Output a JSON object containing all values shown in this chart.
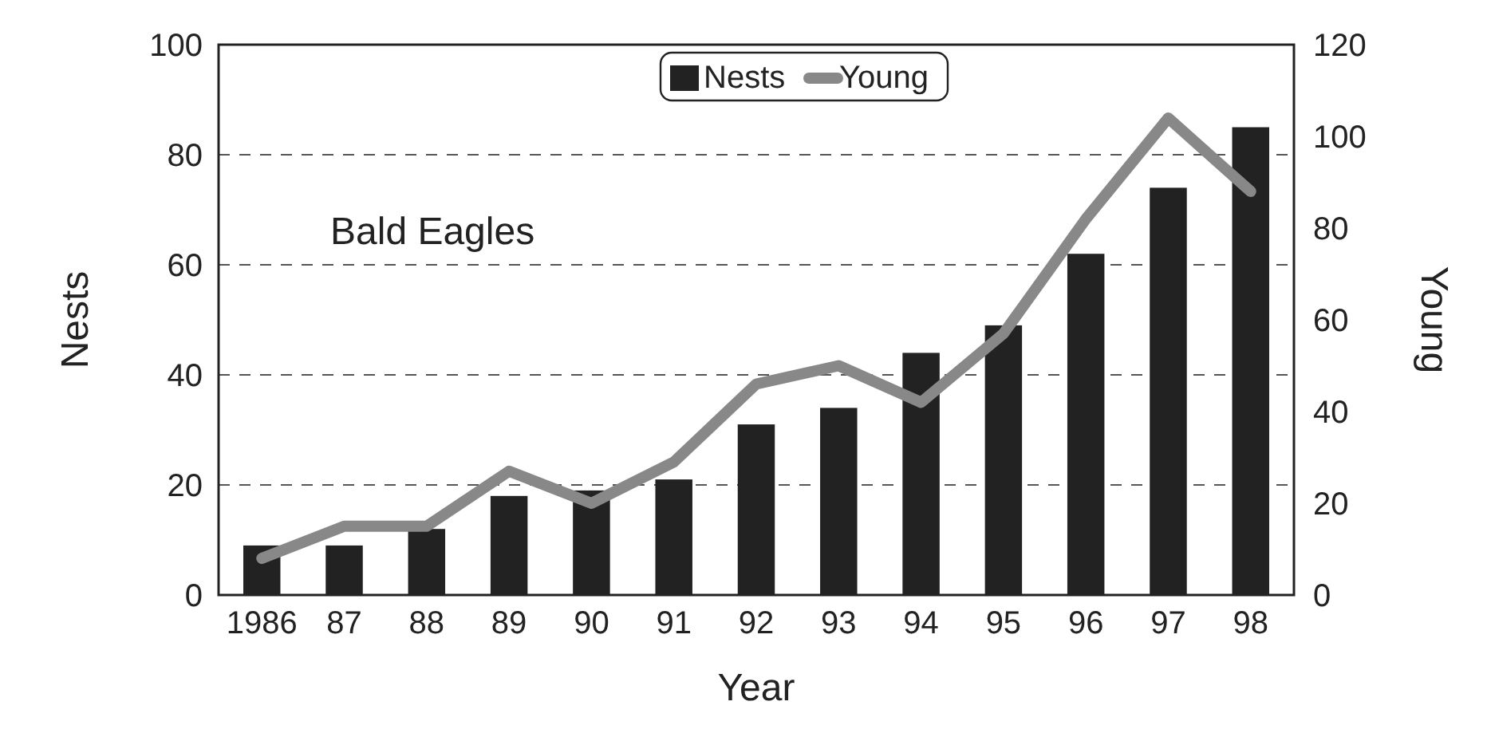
{
  "chart_data": {
    "type": "bar",
    "xlabel": "Year",
    "ylabel": "Nests",
    "y2label": "Young",
    "annotations": [
      "Bald Eagles"
    ],
    "categories": [
      "1986",
      "87",
      "88",
      "89",
      "90",
      "91",
      "92",
      "93",
      "94",
      "95",
      "96",
      "97",
      "98"
    ],
    "series": [
      {
        "name": "Nests",
        "color": "#222222",
        "values": [
          9,
          9,
          12,
          18,
          19,
          21,
          31,
          34,
          44,
          49,
          62,
          74,
          85
        ]
      },
      {
        "name": "Young",
        "type": "line",
        "axis": "y2",
        "color": "#888888",
        "values": [
          8,
          15,
          15,
          27,
          20,
          29,
          46,
          50,
          42,
          57,
          82,
          104,
          88
        ]
      }
    ],
    "ylim": [
      0,
      100
    ],
    "yticks": [
      0,
      20,
      40,
      60,
      80,
      100
    ],
    "y2lim": [
      0,
      120
    ],
    "y2ticks": [
      0,
      20,
      40,
      60,
      80,
      100,
      120
    ],
    "grid": "y",
    "legend": "top",
    "line_style": "solid",
    "marker": "none"
  }
}
